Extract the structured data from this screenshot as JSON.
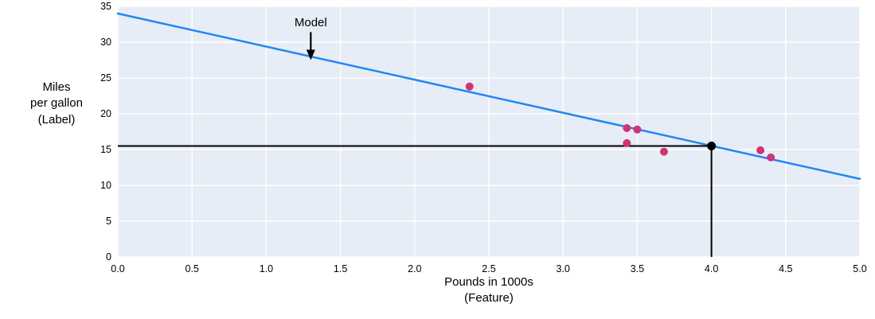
{
  "chart_data": {
    "type": "scatter",
    "title": "",
    "xlabel": "Pounds in 1000s\n(Feature)",
    "ylabel": "Miles\nper gallon\n(Label)",
    "xlim": [
      0.0,
      5.0
    ],
    "ylim": [
      0,
      35
    ],
    "x_ticks": [
      "0.0",
      "0.5",
      "1.0",
      "1.5",
      "2.0",
      "2.5",
      "3.0",
      "3.5",
      "4.0",
      "4.5",
      "5.0"
    ],
    "y_ticks": [
      "0",
      "5",
      "10",
      "15",
      "20",
      "25",
      "30",
      "35"
    ],
    "grid": true,
    "legend": "none",
    "points": [
      {
        "x": 2.37,
        "y": 23.8
      },
      {
        "x": 3.43,
        "y": 18.0
      },
      {
        "x": 3.5,
        "y": 17.8
      },
      {
        "x": 3.43,
        "y": 15.9
      },
      {
        "x": 3.68,
        "y": 14.7
      },
      {
        "x": 4.33,
        "y": 14.9
      },
      {
        "x": 4.4,
        "y": 13.9
      }
    ],
    "model_line": {
      "x_start": 0.0,
      "y_start": 34.0,
      "x_end": 5.0,
      "y_end": 10.9
    },
    "prediction": {
      "x": 4.0,
      "y": 15.5
    },
    "annotation": {
      "label": "Model",
      "x": 1.3,
      "text_y": 32.2,
      "arrow_start_y": 31.4,
      "arrow_tip_y": 27.5
    },
    "colors": {
      "plot_bg": "#E7EDF6",
      "grid": "#FFFFFF",
      "model_line": "#1E88F5",
      "points": "#D23377",
      "prediction_color": "#000000",
      "tick_label_color": "#000000"
    }
  }
}
